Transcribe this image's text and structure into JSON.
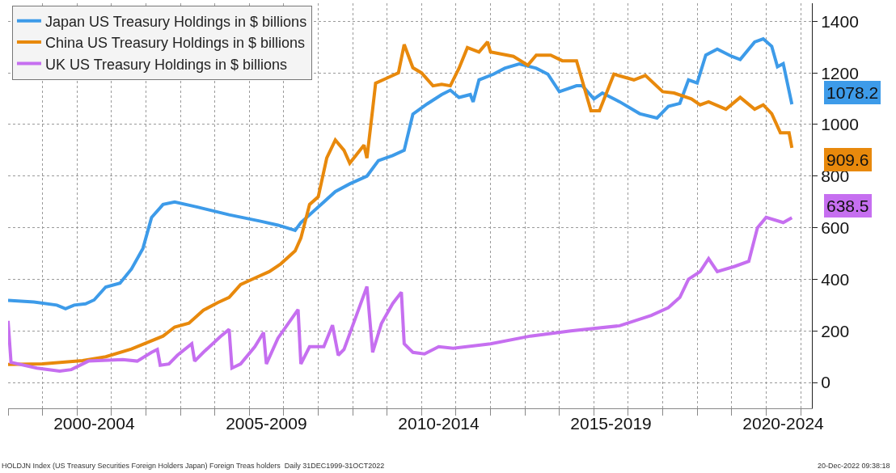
{
  "chart_data": {
    "type": "line",
    "series": [
      {
        "name": "Japan US Treasury Holdings in $ billions",
        "color": "#3d9be9",
        "x": [
          "2000-01",
          "2000-10",
          "2001-06",
          "2001-09",
          "2001-12",
          "2002-04",
          "2002-07",
          "2002-11",
          "2003-04",
          "2003-08",
          "2003-12",
          "2004-03",
          "2004-07",
          "2004-11",
          "2005-07",
          "2006-06",
          "2007-05",
          "2007-11",
          "2008-05",
          "2008-07",
          "2009-01",
          "2009-07",
          "2009-12",
          "2010-06",
          "2010-10",
          "2011-03",
          "2011-07",
          "2011-10",
          "2012-03",
          "2012-08",
          "2012-11",
          "2013-02",
          "2013-06",
          "2013-07",
          "2013-09",
          "2014-02",
          "2014-06",
          "2014-11",
          "2015-05",
          "2015-09",
          "2016-01",
          "2016-07",
          "2016-09",
          "2017-01",
          "2017-04",
          "2017-10",
          "2018-05",
          "2018-11",
          "2019-03",
          "2019-07",
          "2019-10",
          "2020-01",
          "2020-04",
          "2020-08",
          "2021-01",
          "2021-04",
          "2021-09",
          "2021-12",
          "2022-03",
          "2022-05",
          "2022-07",
          "2022-10"
        ],
        "values": [
          318,
          312,
          300,
          286,
          300,
          305,
          320,
          370,
          385,
          440,
          520,
          640,
          690,
          700,
          680,
          650,
          625,
          610,
          590,
          620,
          680,
          740,
          770,
          800,
          860,
          880,
          900,
          1040,
          1080,
          1116,
          1133,
          1105,
          1116,
          1088,
          1173,
          1195,
          1218,
          1235,
          1218,
          1195,
          1127,
          1150,
          1150,
          1099,
          1122,
          1088,
          1042,
          1025,
          1070,
          1082,
          1173,
          1161,
          1269,
          1292,
          1264,
          1252,
          1320,
          1332,
          1303,
          1224,
          1236,
          1078.2
        ]
      },
      {
        "name": "China US Treasury Holdings in $ billions",
        "color": "#e8890c",
        "x": [
          "2000-01",
          "2001-01",
          "2002-03",
          "2002-11",
          "2003-08",
          "2004-07",
          "2004-11",
          "2005-04",
          "2005-09",
          "2006-02",
          "2006-06",
          "2006-10",
          "2007-04",
          "2007-08",
          "2007-12",
          "2008-05",
          "2008-07",
          "2008-10",
          "2009-01",
          "2009-04",
          "2009-07",
          "2009-10",
          "2009-12",
          "2010-05",
          "2010-06",
          "2010-08",
          "2010-09",
          "2011-01",
          "2011-05",
          "2011-07",
          "2011-10",
          "2012-01",
          "2012-05",
          "2012-08",
          "2012-11",
          "2013-02",
          "2013-05",
          "2013-09",
          "2013-12",
          "2014-01",
          "2014-09",
          "2015-02",
          "2015-05",
          "2015-10",
          "2016-02",
          "2016-07",
          "2016-12",
          "2017-03",
          "2017-08",
          "2018-03",
          "2018-07",
          "2019-01",
          "2019-05",
          "2019-11",
          "2020-02",
          "2020-05",
          "2020-11",
          "2021-04",
          "2021-09",
          "2021-12",
          "2022-03",
          "2022-06",
          "2022-09",
          "2022-10"
        ],
        "values": [
          70,
          72,
          85,
          100,
          130,
          180,
          215,
          230,
          280,
          310,
          330,
          380,
          410,
          430,
          460,
          510,
          560,
          690,
          720,
          870,
          940,
          900,
          850,
          920,
          870,
          1060,
          1160,
          1180,
          1200,
          1310,
          1220,
          1200,
          1150,
          1156,
          1150,
          1218,
          1298,
          1281,
          1320,
          1281,
          1264,
          1230,
          1269,
          1269,
          1247,
          1247,
          1053,
          1053,
          1195,
          1173,
          1190,
          1127,
          1122,
          1099,
          1076,
          1088,
          1059,
          1105,
          1059,
          1076,
          1042,
          968,
          968,
          909.6
        ]
      },
      {
        "name": "UK US Treasury Holdings in $ billions",
        "color": "#c66ff0",
        "x": [
          "2000-01",
          "2000-02",
          "2000-11",
          "2001-07",
          "2001-11",
          "2002-05",
          "2003-05",
          "2003-10",
          "2004-03",
          "2004-05",
          "2004-06",
          "2004-09",
          "2004-12",
          "2005-05",
          "2005-06",
          "2005-09",
          "2006-03",
          "2006-06",
          "2006-07",
          "2006-10",
          "2007-03",
          "2007-06",
          "2007-07",
          "2007-11",
          "2008-06",
          "2008-07",
          "2008-10",
          "2009-03",
          "2009-06",
          "2009-08",
          "2009-10",
          "2010-06",
          "2010-08",
          "2010-11",
          "2011-03",
          "2011-06",
          "2011-07",
          "2011-10",
          "2012-02",
          "2012-07",
          "2012-12",
          "2014-01",
          "2015-03",
          "2016-05",
          "2017-10",
          "2018-09",
          "2019-03",
          "2019-07",
          "2019-10",
          "2020-02",
          "2020-05",
          "2020-08",
          "2021-02",
          "2021-07",
          "2021-10",
          "2022-01",
          "2022-07",
          "2022-10"
        ],
        "values": [
          239,
          78,
          56,
          44,
          50,
          83,
          89,
          83,
          117,
          128,
          67,
          72,
          106,
          150,
          83,
          117,
          178,
          206,
          56,
          72,
          139,
          194,
          72,
          172,
          283,
          72,
          139,
          139,
          222,
          106,
          128,
          372,
          117,
          228,
          306,
          350,
          150,
          117,
          111,
          139,
          133,
          150,
          180,
          200,
          220,
          260,
          290,
          330,
          400,
          430,
          480,
          430,
          450,
          470,
          600,
          640,
          620,
          638.5
        ]
      }
    ],
    "xlim": [
      "2000-01-01",
      "2023-05-01"
    ],
    "xticks": [
      {
        "value": "2000-01-01",
        "label": null
      },
      {
        "value": "2001-01-01",
        "label": null
      },
      {
        "value": "2002-01-01",
        "label": null
      },
      {
        "value": "2002-07-01",
        "label": "2000-2004"
      },
      {
        "value": "2003-01-01",
        "label": null
      },
      {
        "value": "2004-01-01",
        "label": null
      },
      {
        "value": "2005-01-01",
        "label": null
      },
      {
        "value": "2006-01-01",
        "label": null
      },
      {
        "value": "2007-01-01",
        "label": null
      },
      {
        "value": "2007-07-01",
        "label": "2005-2009"
      },
      {
        "value": "2008-01-01",
        "label": null
      },
      {
        "value": "2009-01-01",
        "label": null
      },
      {
        "value": "2010-01-01",
        "label": null
      },
      {
        "value": "2011-01-01",
        "label": null
      },
      {
        "value": "2012-01-01",
        "label": null
      },
      {
        "value": "2012-07-01",
        "label": "2010-2014"
      },
      {
        "value": "2013-01-01",
        "label": null
      },
      {
        "value": "2014-01-01",
        "label": null
      },
      {
        "value": "2015-01-01",
        "label": null
      },
      {
        "value": "2016-01-01",
        "label": null
      },
      {
        "value": "2017-01-01",
        "label": null
      },
      {
        "value": "2017-07-01",
        "label": "2015-2019"
      },
      {
        "value": "2018-01-01",
        "label": null
      },
      {
        "value": "2019-01-01",
        "label": null
      },
      {
        "value": "2020-01-01",
        "label": null
      },
      {
        "value": "2021-01-01",
        "label": null
      },
      {
        "value": "2022-01-01",
        "label": null
      },
      {
        "value": "2022-07-01",
        "label": "2020-2024"
      },
      {
        "value": "2023-01-01",
        "label": null
      }
    ],
    "ylim": [
      -100,
      1470
    ],
    "yticks": [
      0,
      200,
      400,
      600,
      800,
      1000,
      1200,
      1400
    ],
    "grid": true,
    "legend": "top left",
    "marker": "none",
    "line_style": "solid",
    "annotations": [
      {
        "text": "1078.2",
        "x": "2022-10",
        "y": 1078.2
      },
      {
        "text": "909.6",
        "x": "2022-10",
        "y": 909.6
      },
      {
        "text": "638.5",
        "x": "2022-10",
        "y": 638.5
      },
      "HOLDJN Index (US Treasury Securities Foreign Holders Japan) Foreign Treas holders  Daily 31DEC1999-31OCT2022",
      "20-Dec-2022 09:38:18"
    ]
  }
}
